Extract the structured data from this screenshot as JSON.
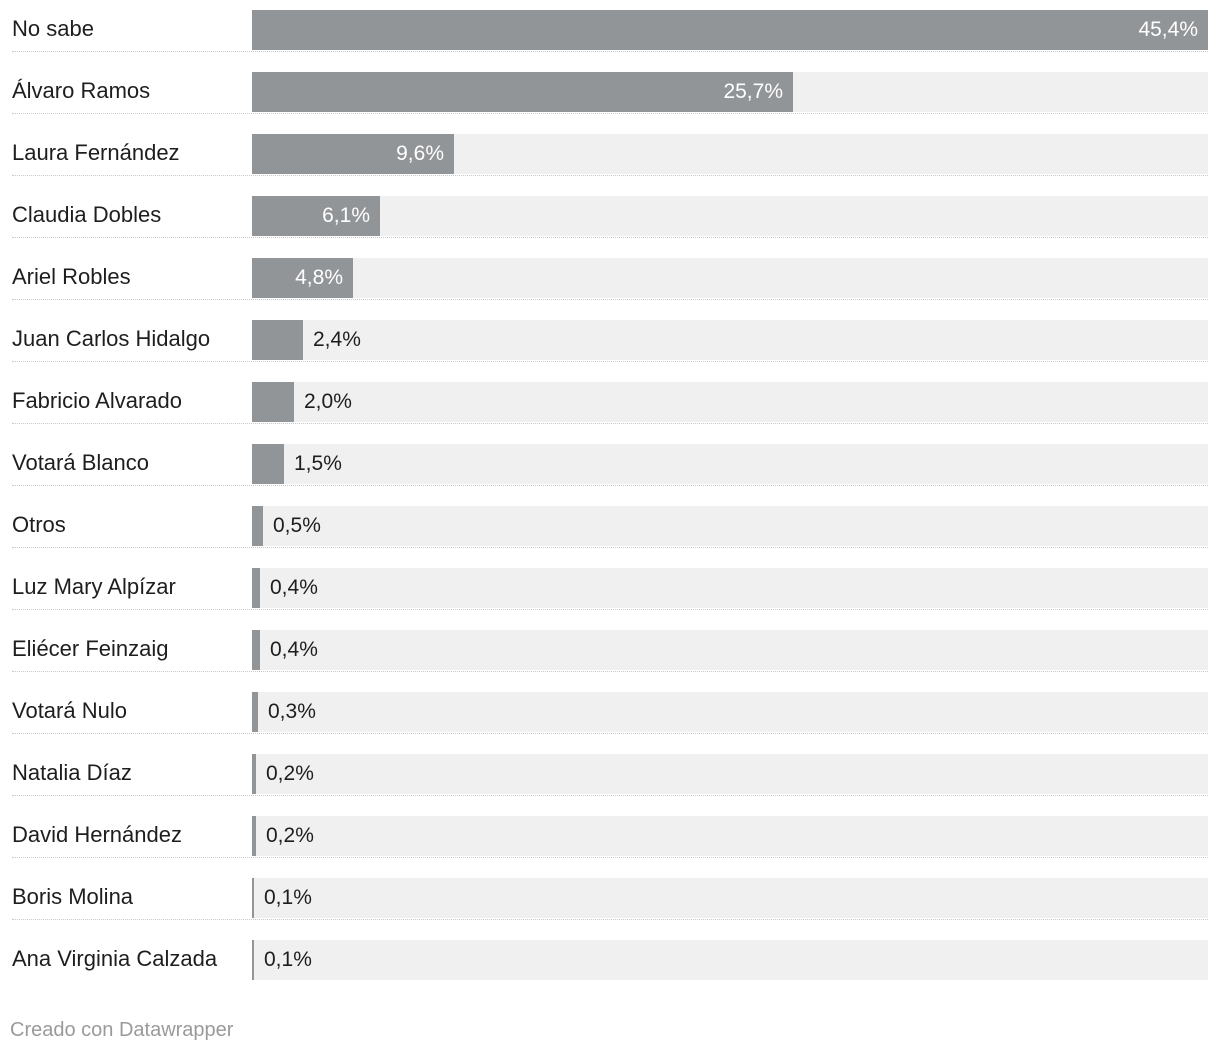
{
  "chart_data": {
    "type": "bar",
    "orientation": "horizontal",
    "title": "",
    "xlabel": "",
    "ylabel": "",
    "xlim": [
      0,
      45.4
    ],
    "grid": false,
    "bar_color": "#929598",
    "track_color": "#f0f0f0",
    "categories": [
      "No sabe",
      "Álvaro Ramos",
      "Laura Fernández",
      "Claudia Dobles",
      "Ariel Robles",
      "Juan Carlos Hidalgo",
      "Fabricio Alvarado",
      "Votará Blanco",
      "Otros",
      "Luz Mary Alpízar",
      "Eliécer Feinzaig",
      "Votará Nulo",
      "Natalia Díaz",
      "David Hernández",
      "Boris Molina",
      "Ana Virginia Calzada"
    ],
    "values": [
      45.4,
      25.7,
      9.6,
      6.1,
      4.8,
      2.4,
      2.0,
      1.5,
      0.5,
      0.4,
      0.4,
      0.3,
      0.2,
      0.2,
      0.1,
      0.1
    ],
    "value_labels": [
      "45,4%",
      "25,7%",
      "9,6%",
      "6,1%",
      "4,8%",
      "2,4%",
      "2,0%",
      "1,5%",
      "0,5%",
      "0,4%",
      "0,4%",
      "0,3%",
      "0,2%",
      "0,2%",
      "0,1%",
      "0,1%"
    ]
  },
  "footer": {
    "credit": "Creado con Datawrapper"
  }
}
